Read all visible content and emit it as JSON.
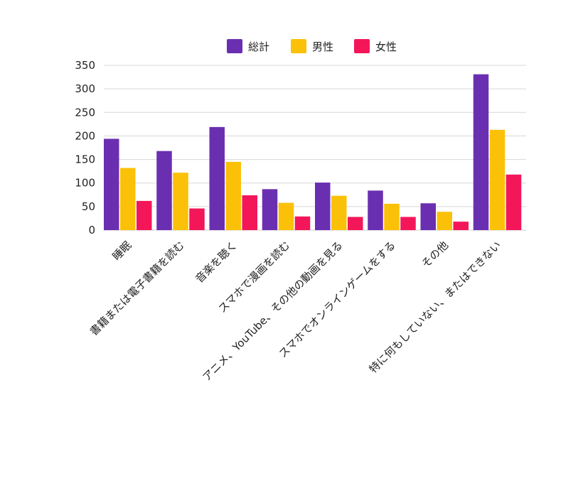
{
  "chart_data": {
    "type": "bar",
    "title": "",
    "xlabel": "",
    "ylabel": "",
    "ylim": [
      0,
      350
    ],
    "yticks": [
      0,
      50,
      100,
      150,
      200,
      250,
      300,
      350
    ],
    "grid": true,
    "legend_position": "top-center",
    "categories": [
      "睡眠",
      "書籍または電子書籍を読む",
      "音楽を聴く",
      "スマホで漫画を読む",
      "アニメ、YouTube、その他の動画を見る",
      "スマホでオンラインゲームをする",
      "その他",
      "特に何もしていない、またはできない"
    ],
    "series": [
      {
        "name": "総計",
        "color": "#6a2fb1",
        "values": [
          194,
          168,
          219,
          87,
          101,
          84,
          57,
          331
        ]
      },
      {
        "name": "男性",
        "color": "#fbc108",
        "values": [
          132,
          122,
          145,
          58,
          73,
          56,
          39,
          213
        ]
      },
      {
        "name": "女性",
        "color": "#f3175a",
        "values": [
          62,
          46,
          74,
          29,
          28,
          28,
          18,
          118
        ]
      }
    ]
  }
}
